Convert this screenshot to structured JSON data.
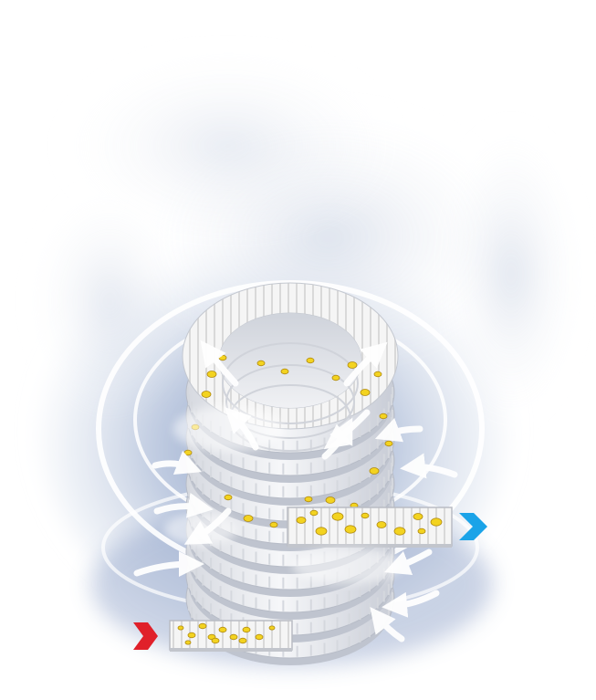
{
  "diagram": {
    "type": "spiral-belt-mixing-illustration",
    "components": {
      "spiral_coil": {
        "icon": "spiral-coil",
        "turns_visible": 10
      },
      "input_belt": {
        "icon": "input-belt-with-yellow-dots"
      },
      "output_belt": {
        "icon": "output-belt-with-yellow-dots"
      },
      "input_arrow": {
        "icon": "arrow-right-icon",
        "color": "#e0202a"
      },
      "output_arrow": {
        "icon": "arrow-right-icon",
        "color": "#1aa3e8"
      },
      "airflow_arrows": {
        "icon": "white-curved-arrow-icon",
        "count": 14
      },
      "orbit_rings": {
        "icon": "orbit-ring",
        "count": 2
      },
      "vapor_cloud": {
        "icon": "steam-cloud",
        "color": "#b7c4dc"
      }
    },
    "colors": {
      "dot_fill": "#f3d320",
      "dot_stroke": "#b08a10",
      "belt_face": "#f4f4f4",
      "belt_stripe": "#d6d6d6"
    }
  }
}
